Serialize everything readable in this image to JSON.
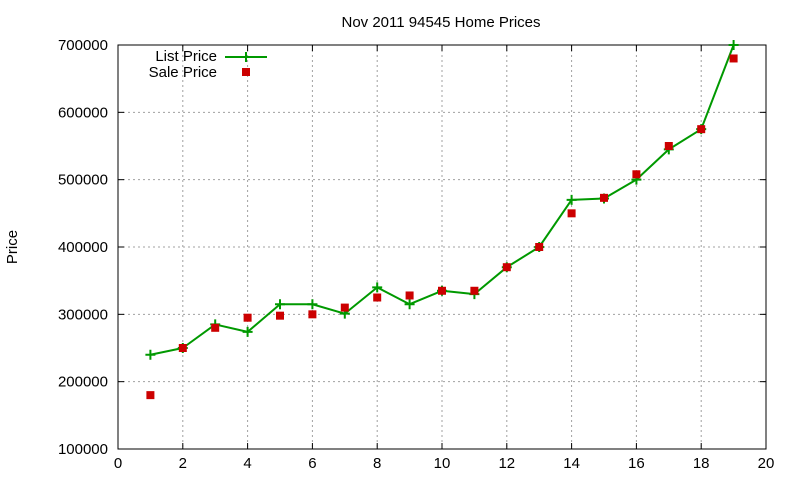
{
  "chart_data": {
    "type": "line",
    "title": "Nov 2011 94545 Home Prices",
    "xlabel": "",
    "ylabel": "Price",
    "xlim": [
      0,
      20
    ],
    "ylim": [
      100000,
      700000
    ],
    "xticks": [
      0,
      2,
      4,
      6,
      8,
      10,
      12,
      14,
      16,
      18,
      20
    ],
    "yticks": [
      100000,
      200000,
      300000,
      400000,
      500000,
      600000,
      700000
    ],
    "grid": true,
    "legend_position": "top-left",
    "series": [
      {
        "name": "List Price",
        "style": "line-with-plus-markers",
        "color": "#009900",
        "x": [
          1,
          2,
          3,
          4,
          5,
          6,
          7,
          8,
          9,
          10,
          11,
          12,
          13,
          14,
          15,
          16,
          17,
          18,
          19
        ],
        "values": [
          240000,
          250000,
          285000,
          274000,
          315000,
          315000,
          301000,
          340000,
          315000,
          335000,
          330000,
          370000,
          400000,
          470000,
          472000,
          500000,
          545000,
          575000,
          700000
        ]
      },
      {
        "name": "Sale Price",
        "style": "square-markers",
        "color": "#cc0000",
        "x": [
          1,
          2,
          3,
          4,
          5,
          6,
          7,
          8,
          9,
          10,
          11,
          12,
          13,
          14,
          15,
          16,
          17,
          18,
          19
        ],
        "values": [
          180000,
          250000,
          280000,
          295000,
          298000,
          300000,
          310000,
          325000,
          328000,
          335000,
          335000,
          370000,
          400000,
          450000,
          473000,
          508000,
          550000,
          575000,
          680000
        ]
      }
    ]
  }
}
